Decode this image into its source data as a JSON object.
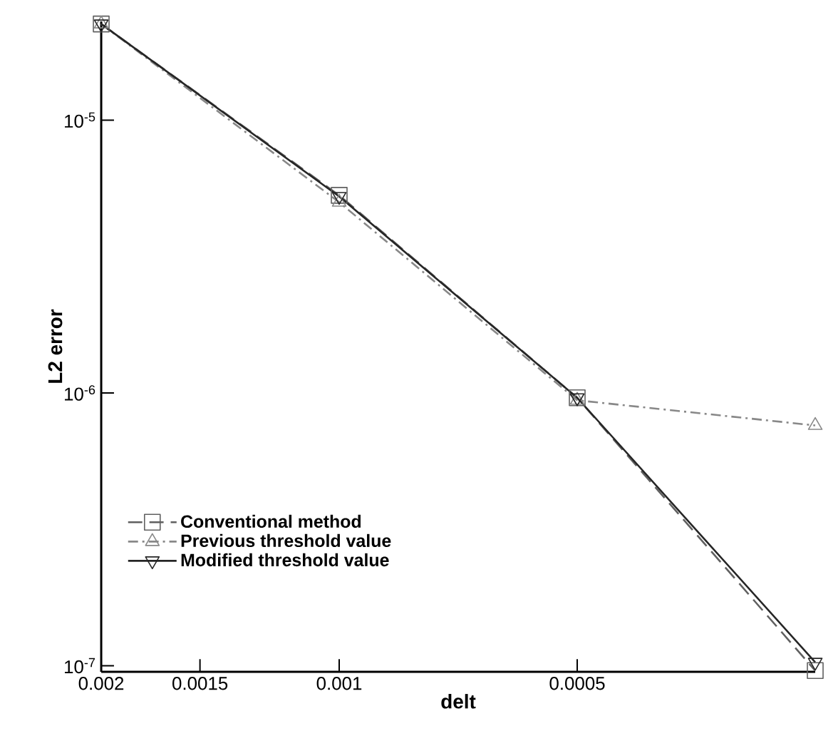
{
  "chart_data": {
    "type": "line",
    "xlabel": "delt",
    "ylabel": "L2 error",
    "log": "xy",
    "x": [
      0.002,
      0.001,
      0.0005,
      0.00025
    ],
    "series": [
      {
        "name": "Conventional method",
        "color": "#606060",
        "line_style": "dashed",
        "marker": "square",
        "values": [
          2.25e-05,
          5.3e-06,
          9.6e-07,
          9.6e-08
        ]
      },
      {
        "name": "Previous threshold value",
        "color": "#888888",
        "line_style": "dashdot",
        "marker": "triangle",
        "values": [
          2.25e-05,
          5e-06,
          9.4e-07,
          7.6e-07
        ]
      },
      {
        "name": "Modified threshold value",
        "color": "#262626",
        "line_style": "solid",
        "marker": "triangle_down",
        "values": [
          2.25e-05,
          5.25e-06,
          9.6e-07,
          1.03e-07
        ]
      }
    ],
    "xlim": [
      0.002,
      0.00025
    ],
    "ylim": [
      9.5e-08,
      2.3e-05
    ],
    "xticks": [
      0.002,
      0.0015,
      0.001,
      0.0005
    ],
    "yticks": [
      {
        "value": 1e-05,
        "label": "10$^{-5}$"
      },
      {
        "value": 1e-06,
        "label": "10$^{-6}$"
      },
      {
        "value": 1e-07,
        "label": "10$^{-7}$"
      }
    ],
    "legend": "bottom left"
  }
}
